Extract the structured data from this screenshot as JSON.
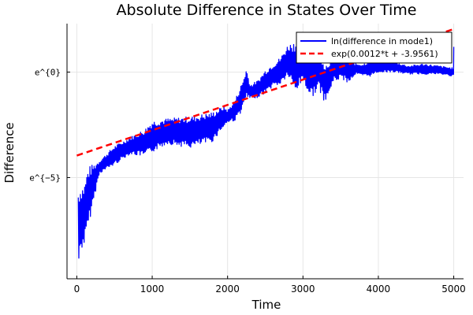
{
  "chart_data": {
    "type": "line",
    "title": "Absolute Difference in States Over Time",
    "xlabel": "Time",
    "ylabel": "Difference",
    "xlim": [
      -130,
      5130
    ],
    "ylim": [
      -9.8,
      2.3
    ],
    "xticks": [
      0,
      1000,
      2000,
      3000,
      4000,
      5000
    ],
    "xtick_labels": [
      "0",
      "1000",
      "2000",
      "3000",
      "4000",
      "5000"
    ],
    "yticks": [
      0,
      -5
    ],
    "ytick_labels": [
      "e^{0}",
      "e^{−5}"
    ],
    "y_scale": "log (base e)",
    "grid": true,
    "legend_position": "top-right",
    "series": [
      {
        "name": "ln(difference in mode1)",
        "color": "#0000ff",
        "style": "solid",
        "envelope_x": [
          20,
          50,
          100,
          150,
          300,
          500,
          700,
          900,
          1000,
          1200,
          1500,
          1800,
          1950,
          2000,
          2100,
          2200,
          2250,
          2300,
          2400,
          2500,
          2600,
          2700,
          2800,
          2900,
          3000,
          3100,
          3200,
          3300,
          3400,
          3500,
          3600,
          3700,
          3800,
          3900,
          4000,
          4200,
          4400,
          4600,
          4800,
          5000
        ],
        "envelope_upper": [
          -5.5,
          -5.4,
          -5.3,
          -4.5,
          -4.2,
          -3.5,
          -3.1,
          -2.7,
          -2.3,
          -2.2,
          -2.1,
          -1.9,
          -1.6,
          -1.8,
          -1.3,
          -0.4,
          0.2,
          -0.6,
          -0.4,
          0.1,
          0.4,
          0.7,
          1.3,
          1.5,
          1.4,
          1.3,
          1.2,
          0.4,
          0.8,
          0.9,
          0.7,
          0.4,
          0.4,
          0.6,
          0.5,
          0.5,
          0.3,
          0.4,
          0.3,
          0.2
        ],
        "envelope_lower": [
          -9.4,
          -8.5,
          -8.2,
          -7.4,
          -4.8,
          -4.4,
          -3.9,
          -4.0,
          -3.8,
          -3.4,
          -3.6,
          -3.3,
          -2.6,
          -2.4,
          -2.3,
          -1.8,
          -1.2,
          -1.3,
          -1.2,
          -1.0,
          -0.7,
          -0.6,
          -0.2,
          -1.0,
          -0.4,
          -1.3,
          -0.8,
          -1.5,
          -0.5,
          -0.3,
          -0.5,
          -0.1,
          -0.2,
          -0.2,
          0.0,
          0.0,
          -0.1,
          -0.1,
          -0.1,
          -0.2
        ]
      },
      {
        "name": "exp(0.0012*t + -3.9561)",
        "color": "#ff0000",
        "style": "dashed",
        "slope": 0.0012,
        "intercept": -3.9561,
        "x_range": [
          0,
          5000
        ]
      }
    ]
  }
}
